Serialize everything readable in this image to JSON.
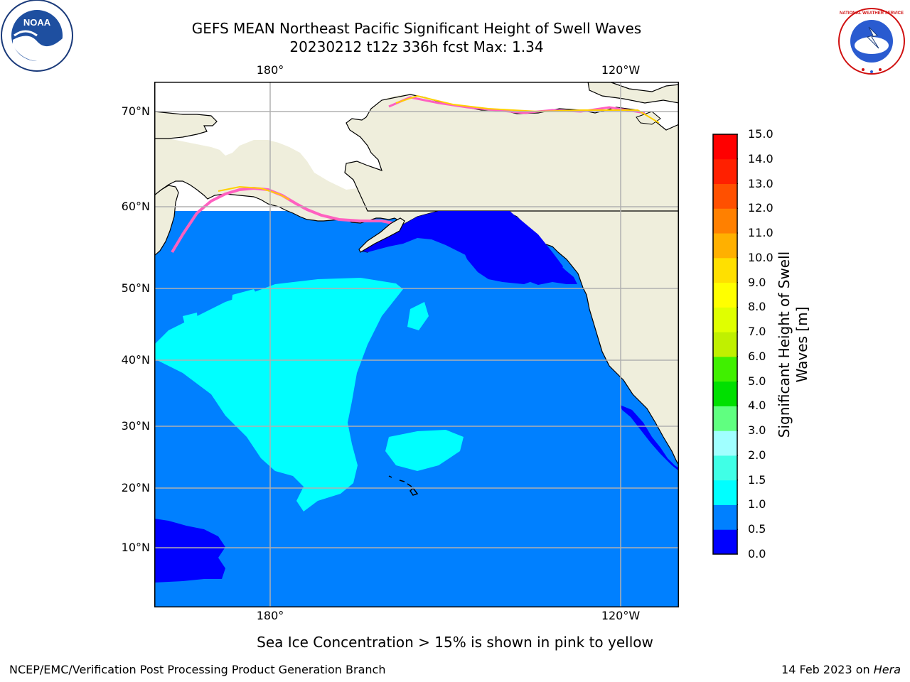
{
  "title": {
    "line1": "GEFS MEAN Northeast Pacific Significant Height of Swell Waves",
    "line2": "20230212 t12z 336h fcst   Max: 1.34"
  },
  "map": {
    "lon_ticks_top": [
      "180°",
      "120°W"
    ],
    "lon_ticks_bottom": [
      "180°",
      "120°W"
    ],
    "lat_ticks": [
      "70°N",
      "60°N",
      "50°N",
      "40°N",
      "30°N",
      "20°N",
      "10°N"
    ],
    "colors": {
      "land": "#efeedc",
      "ocean_deep": "#0000ff",
      "ocean_mid": "#0080ff",
      "ocean_light": "#00ffff",
      "grid": "#b0b0b0"
    }
  },
  "colorbar": {
    "label": "Significant Height of Swell Waves [m]",
    "ticks": [
      "0.0",
      "0.5",
      "1.0",
      "1.5",
      "2.0",
      "3.0",
      "4.0",
      "5.0",
      "6.0",
      "7.0",
      "8.0",
      "9.0",
      "10.0",
      "11.0",
      "12.0",
      "13.0",
      "14.0",
      "15.0"
    ],
    "colors": [
      "#0000ff",
      "#0080ff",
      "#00ffff",
      "#40ffe6",
      "#a0ffff",
      "#60ff80",
      "#00e000",
      "#40f000",
      "#c0f000",
      "#e0ff00",
      "#ffff00",
      "#ffe000",
      "#ffb000",
      "#ff8000",
      "#ff5000",
      "#ff2000",
      "#ff0000"
    ]
  },
  "footnote": "Sea Ice Concentration > 15% is shown in pink to yellow",
  "footer": {
    "left": "NCEP/EMC/Verification Post Processing Product Generation Branch",
    "right_date": "14 Feb 2023 on ",
    "right_system": "Hera"
  },
  "logos": {
    "left": "NOAA",
    "right": "NATIONAL WEATHER SERVICE"
  }
}
